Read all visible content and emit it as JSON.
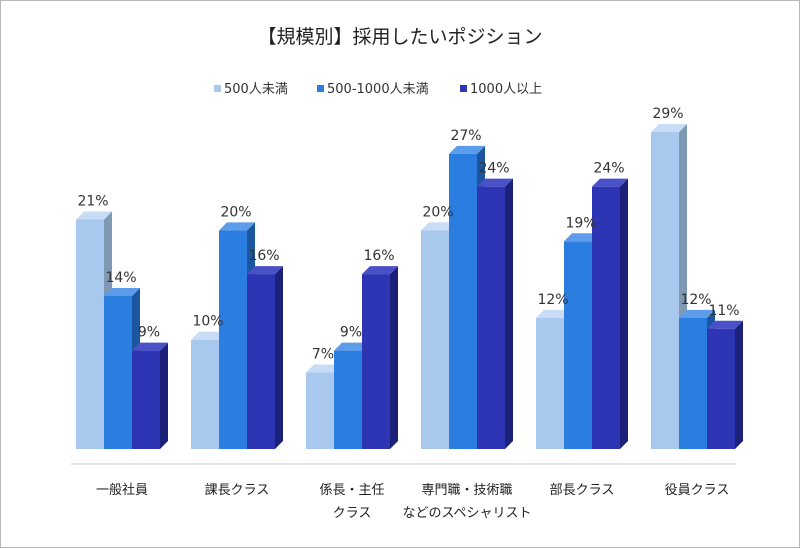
{
  "chart_data": {
    "type": "bar",
    "title": "【規模別】採用したいポジション",
    "categories": [
      [
        "一般社員"
      ],
      [
        "課長クラス"
      ],
      [
        "係長・主任",
        "クラス"
      ],
      [
        "専門職・技術職",
        "などのスペシャリスト"
      ],
      [
        "部長クラス"
      ],
      [
        "役員クラス"
      ]
    ],
    "series": [
      {
        "name": "500人未満",
        "values": [
          21,
          10,
          7,
          20,
          12,
          29
        ],
        "color": "#a9c8ee",
        "side_color": "#7f99b5",
        "top_color": "#c9dcf5"
      },
      {
        "name": "500-1000人未満",
        "values": [
          14,
          20,
          9,
          27,
          19,
          12
        ],
        "color": "#2b7de0",
        "side_color": "#1c56a0",
        "top_color": "#5d9ceb"
      },
      {
        "name": "1000人以上",
        "values": [
          9,
          16,
          16,
          24,
          24,
          11
        ],
        "color": "#2e35b4",
        "side_color": "#1b2078",
        "top_color": "#4a51c8"
      }
    ],
    "value_suffix": "%",
    "ylim": [
      0,
      30
    ],
    "grid": false,
    "legend_position": "top-center"
  }
}
